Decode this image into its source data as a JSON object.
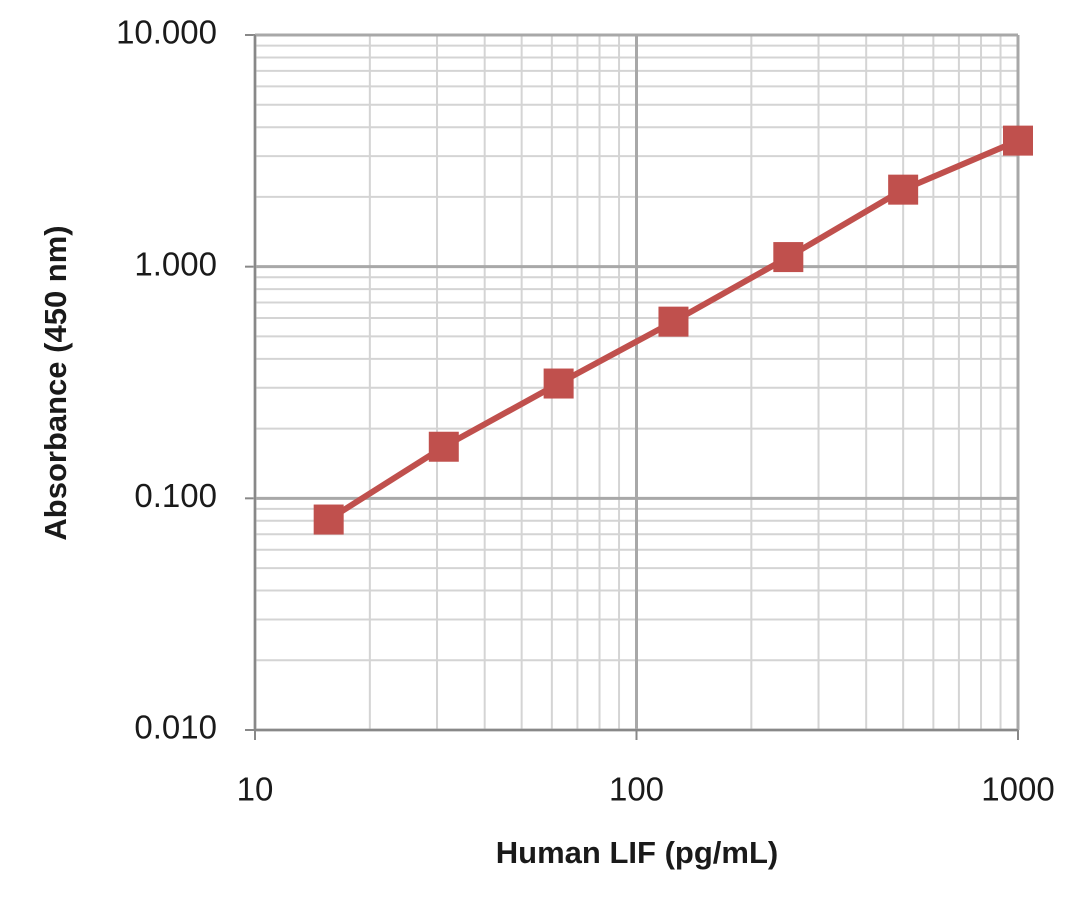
{
  "chart_data": {
    "type": "line",
    "x_label": "Human LIF (pg/mL)",
    "y_label": "Absorbance  (450 nm)",
    "x": [
      15.6,
      31.25,
      62.5,
      125,
      250,
      500,
      1000
    ],
    "series": [
      {
        "name": "Absorbance",
        "color": "#c0504d",
        "values": [
          0.081,
          0.167,
          0.313,
          0.579,
          1.1,
          2.15,
          3.5
        ]
      }
    ],
    "xlim": [
      10,
      1000
    ],
    "ylim": [
      0.01,
      10
    ],
    "xticks": [
      10,
      100,
      1000
    ],
    "yticks": [
      {
        "value": 0.01,
        "label": "0.010"
      },
      {
        "value": 0.1,
        "label": "0.100"
      },
      {
        "value": 1,
        "label": "1.000"
      },
      {
        "value": 10,
        "label": "10.000"
      }
    ],
    "xscale": "log",
    "yscale": "log",
    "grid": true,
    "minor_grid": true
  }
}
